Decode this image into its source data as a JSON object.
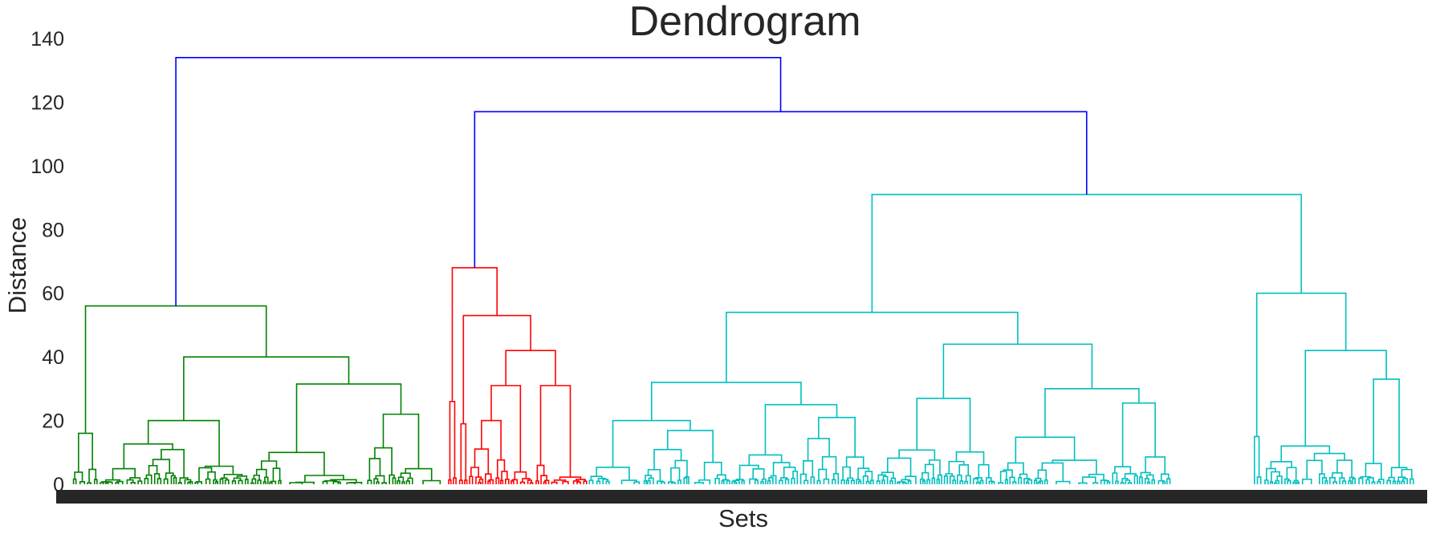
{
  "chart_data": {
    "type": "dendrogram",
    "title": "Dendrogram",
    "xlabel": "Sets",
    "ylabel": "Distance",
    "ylim": [
      0,
      140
    ],
    "yticks": [
      0,
      20,
      40,
      60,
      80,
      100,
      120,
      140
    ],
    "grid": false,
    "cluster_colors": {
      "above_threshold": "#0000ff",
      "cluster_1": "#008000",
      "cluster_2": "#ff0000",
      "cluster_3": "#00bfbf"
    },
    "major_merges": [
      {
        "distance": 134,
        "joins": [
          "cluster_1",
          "cluster_2+cluster_3"
        ],
        "color": "#0000ff"
      },
      {
        "distance": 117,
        "joins": [
          "cluster_2",
          "cluster_3"
        ],
        "color": "#0000ff"
      },
      {
        "distance": 91,
        "within": "cluster_3",
        "color": "#00bfbf"
      },
      {
        "distance": 68,
        "within": "cluster_2",
        "color": "#ff0000"
      },
      {
        "distance": 60,
        "within": "cluster_3",
        "color": "#00bfbf"
      },
      {
        "distance": 56,
        "within": "cluster_1",
        "color": "#008000"
      },
      {
        "distance": 54,
        "within": "cluster_3",
        "color": "#00bfbf"
      }
    ]
  }
}
